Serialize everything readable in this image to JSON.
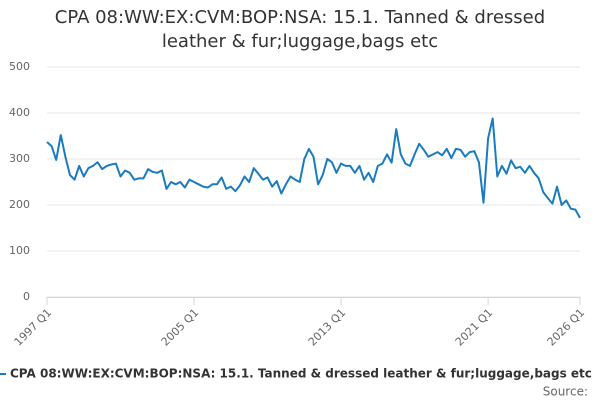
{
  "chart_data": {
    "type": "line",
    "title": "CPA 08:WW:EX:CVM:BOP:NSA: 15.1. Tanned & dressed leather & fur;luggage,bags etc",
    "source_label": "Source:",
    "categories": [
      "1997 Q1",
      null,
      null,
      null,
      null,
      null,
      null,
      null,
      null,
      null,
      null,
      null,
      null,
      null,
      null,
      null,
      null,
      null,
      null,
      null,
      null,
      null,
      null,
      null,
      null,
      null,
      null,
      null,
      null,
      null,
      null,
      null,
      "2005 Q1",
      null,
      null,
      null,
      null,
      null,
      null,
      null,
      null,
      null,
      null,
      null,
      null,
      null,
      null,
      null,
      null,
      null,
      null,
      null,
      null,
      null,
      null,
      null,
      null,
      null,
      null,
      null,
      null,
      null,
      null,
      null,
      "2013 Q1",
      null,
      null,
      null,
      null,
      null,
      null,
      null,
      null,
      null,
      null,
      null,
      null,
      null,
      null,
      null,
      null,
      null,
      null,
      null,
      null,
      null,
      null,
      null,
      null,
      null,
      null,
      null,
      null,
      null,
      null,
      null,
      "2021 Q1",
      null,
      null,
      null,
      null,
      null,
      null,
      null,
      null,
      null,
      null,
      null,
      null,
      null,
      null,
      null,
      null,
      null,
      null,
      null,
      "2026 Q1"
    ],
    "series": [
      {
        "name": "CPA 08:WW:EX:CVM:BOP:NSA: 15.1. Tanned & dressed leather & fur;luggage,bags etc",
        "color": "#1a7bbf",
        "values": [
          337,
          328,
          298,
          352,
          305,
          265,
          255,
          285,
          262,
          280,
          285,
          293,
          278,
          285,
          288,
          290,
          262,
          275,
          270,
          255,
          258,
          258,
          278,
          272,
          270,
          275,
          235,
          250,
          245,
          250,
          238,
          255,
          250,
          245,
          240,
          238,
          245,
          245,
          260,
          235,
          240,
          230,
          243,
          262,
          250,
          280,
          268,
          255,
          260,
          240,
          252,
          225,
          245,
          262,
          255,
          250,
          300,
          322,
          305,
          245,
          265,
          300,
          293,
          270,
          290,
          285,
          285,
          270,
          285,
          255,
          270,
          250,
          285,
          290,
          310,
          292,
          365,
          310,
          290,
          285,
          310,
          333,
          320,
          305,
          310,
          315,
          308,
          322,
          302,
          322,
          320,
          305,
          315,
          317,
          293,
          205,
          345,
          388,
          262,
          285,
          268,
          297,
          280,
          283,
          270,
          285,
          270,
          258,
          228,
          215,
          203,
          240,
          200,
          210,
          192,
          190,
          172
        ]
      }
    ],
    "ylim": [
      0,
      500
    ],
    "yticks": [
      0,
      100,
      200,
      300,
      400,
      500
    ],
    "grid": true
  }
}
